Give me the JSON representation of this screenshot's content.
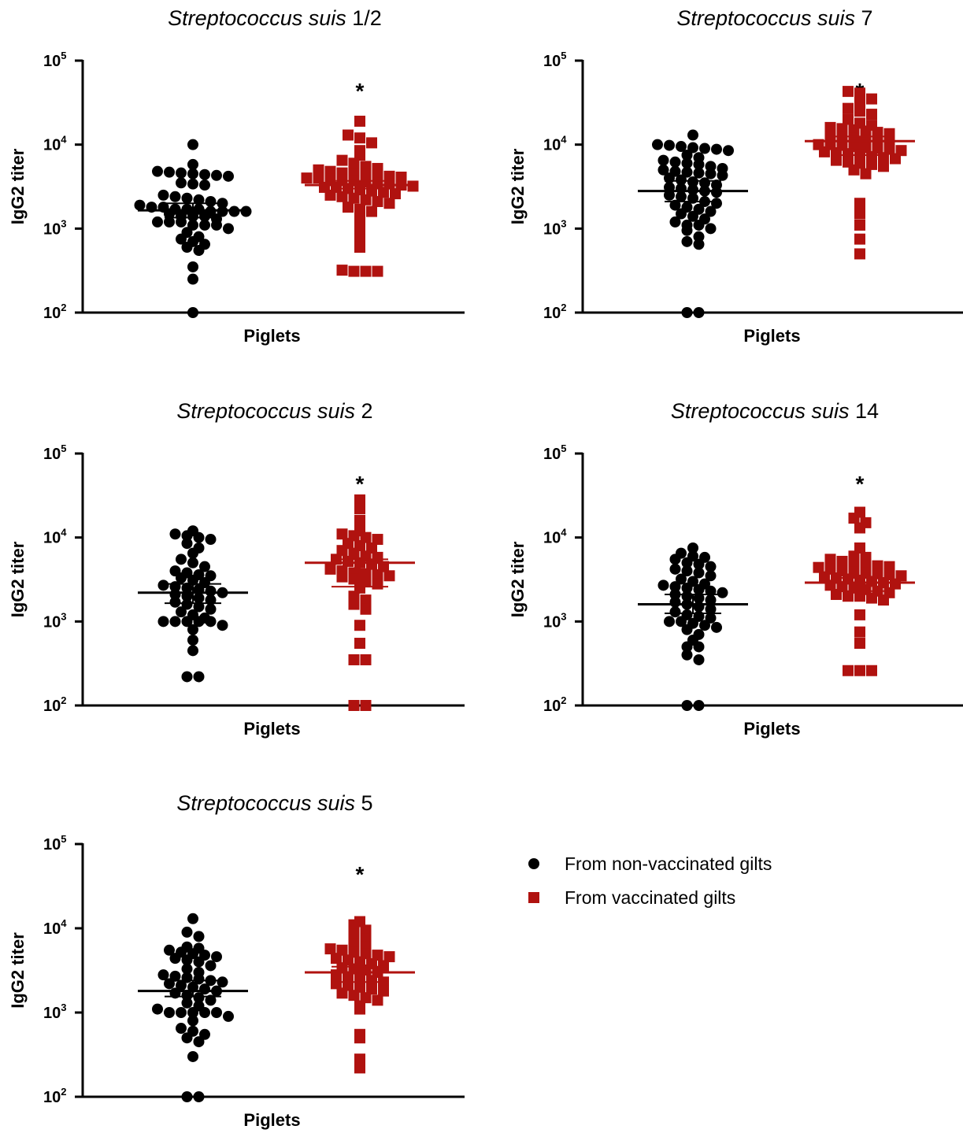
{
  "colors": {
    "non_vaccinated": "#000000",
    "vaccinated": "#b0120f",
    "axis": "#000000"
  },
  "legend": [
    {
      "label": "From non-vaccinated gilts",
      "marker": "circle",
      "color": "#000000"
    },
    {
      "label": "From vaccinated gilts",
      "marker": "square",
      "color": "#b0120f"
    }
  ],
  "chart_data": [
    {
      "type": "scatter",
      "title_italic": "Streptococcus suis",
      "title_serotype": "1/2",
      "xlabel": "Piglets",
      "ylabel": "IgG2 titer",
      "yscale": "log",
      "ylim": [
        100,
        100000
      ],
      "yticks": [
        {
          "base": "10",
          "exp": "2"
        },
        {
          "base": "10",
          "exp": "3"
        },
        {
          "base": "10",
          "exp": "4"
        },
        {
          "base": "10",
          "exp": "5"
        }
      ],
      "annotation": "*",
      "series": [
        {
          "group": "non_vaccinated",
          "marker": "circle",
          "mean": 1650,
          "lower": 1350,
          "upper": 2000,
          "values": [
            10000,
            5800,
            4800,
            4700,
            4600,
            4500,
            4400,
            4300,
            4200,
            3500,
            3400,
            3300,
            2500,
            2400,
            2300,
            2200,
            2100,
            2000,
            1900,
            1800,
            1800,
            1700,
            1700,
            1700,
            1600,
            1600,
            1600,
            1600,
            1500,
            1400,
            1400,
            1400,
            1300,
            1200,
            1200,
            1200,
            1100,
            1100,
            1100,
            1000,
            900,
            800,
            750,
            700,
            650,
            600,
            550,
            350,
            250,
            100
          ]
        },
        {
          "group": "vaccinated",
          "marker": "square",
          "mean": 3300,
          "lower": 3000,
          "upper": 3700,
          "values": [
            19000,
            13000,
            12000,
            10500,
            8500,
            7500,
            6500,
            6000,
            5500,
            5200,
            5000,
            4800,
            4600,
            4500,
            4400,
            4300,
            4200,
            4100,
            4000,
            4000,
            3900,
            3800,
            3700,
            3600,
            3500,
            3400,
            3300,
            3200,
            3100,
            3100,
            3000,
            2900,
            2800,
            2700,
            2600,
            2500,
            2400,
            2300,
            2200,
            2100,
            2000,
            1800,
            1700,
            1600,
            1300,
            1000,
            800,
            600,
            320,
            310,
            310,
            310
          ]
        }
      ]
    },
    {
      "type": "scatter",
      "title_italic": "Streptococcus suis",
      "title_serotype": "7",
      "xlabel": "Piglets",
      "ylabel": "IgG2 titer",
      "yscale": "log",
      "ylim": [
        100,
        100000
      ],
      "yticks": [
        {
          "base": "10",
          "exp": "2"
        },
        {
          "base": "10",
          "exp": "3"
        },
        {
          "base": "10",
          "exp": "4"
        },
        {
          "base": "10",
          "exp": "5"
        }
      ],
      "annotation": "*",
      "series": [
        {
          "group": "non_vaccinated",
          "marker": "circle",
          "mean": 2800,
          "lower": 2100,
          "upper": 3700,
          "values": [
            13000,
            10000,
            9800,
            9500,
            9200,
            9000,
            8800,
            8500,
            7500,
            7000,
            6500,
            6200,
            6000,
            5800,
            5500,
            5200,
            5000,
            4800,
            4700,
            4600,
            4500,
            4300,
            4000,
            3800,
            3600,
            3500,
            3300,
            3100,
            3000,
            2900,
            2800,
            2700,
            2500,
            2400,
            2300,
            2100,
            2000,
            1900,
            1800,
            1700,
            1600,
            1500,
            1400,
            1300,
            1200,
            1100,
            1100,
            1000,
            950,
            800,
            700,
            650,
            100,
            100
          ]
        },
        {
          "group": "vaccinated",
          "marker": "square",
          "mean": 11000,
          "lower": 7500,
          "upper": 12500,
          "values": [
            43000,
            41000,
            35000,
            33000,
            27000,
            25000,
            23000,
            20000,
            18000,
            17000,
            16000,
            15500,
            15000,
            14500,
            14000,
            13500,
            13000,
            12500,
            12000,
            11500,
            11000,
            10500,
            10000,
            10000,
            9800,
            9500,
            9200,
            9000,
            8800,
            8500,
            8200,
            8000,
            7800,
            7500,
            7200,
            7000,
            6800,
            6500,
            6200,
            6000,
            5800,
            5500,
            5000,
            4500,
            2000,
            1800,
            1500,
            1100,
            750,
            500
          ]
        }
      ]
    },
    {
      "type": "scatter",
      "title_italic": "Streptococcus suis",
      "title_serotype": "2",
      "xlabel": "Piglets",
      "ylabel": "IgG2 titer",
      "yscale": "log",
      "ylim": [
        100,
        100000
      ],
      "yticks": [
        {
          "base": "10",
          "exp": "2"
        },
        {
          "base": "10",
          "exp": "3"
        },
        {
          "base": "10",
          "exp": "4"
        },
        {
          "base": "10",
          "exp": "5"
        }
      ],
      "annotation": "*",
      "series": [
        {
          "group": "non_vaccinated",
          "marker": "circle",
          "mean": 2200,
          "lower": 1650,
          "upper": 2800,
          "values": [
            12000,
            11000,
            10500,
            10000,
            9500,
            8500,
            7500,
            6500,
            5500,
            5000,
            4500,
            4000,
            3800,
            3600,
            3500,
            3300,
            3100,
            2900,
            2700,
            2600,
            2500,
            2400,
            2300,
            2200,
            2100,
            2000,
            1900,
            1800,
            1700,
            1600,
            1500,
            1400,
            1300,
            1200,
            1100,
            1000,
            1000,
            1000,
            1000,
            1000,
            900,
            800,
            600,
            450,
            220,
            220
          ]
        },
        {
          "group": "vaccinated",
          "marker": "square",
          "mean": 5000,
          "lower": 2600,
          "upper": 5500,
          "values": [
            28000,
            22000,
            16000,
            12000,
            11000,
            10500,
            10000,
            9500,
            8500,
            8000,
            7500,
            7000,
            6500,
            6000,
            5800,
            5500,
            5200,
            5000,
            4800,
            4500,
            4200,
            4000,
            3800,
            3700,
            3600,
            3500,
            3400,
            3200,
            3000,
            2800,
            2500,
            2000,
            1800,
            1600,
            1400,
            900,
            550,
            350,
            350,
            100,
            100
          ]
        }
      ]
    },
    {
      "type": "scatter",
      "title_italic": "Streptococcus suis",
      "title_serotype": "14",
      "xlabel": "Piglets",
      "ylabel": "IgG2 titer",
      "yscale": "log",
      "ylim": [
        100,
        100000
      ],
      "yticks": [
        {
          "base": "10",
          "exp": "2"
        },
        {
          "base": "10",
          "exp": "3"
        },
        {
          "base": "10",
          "exp": "4"
        },
        {
          "base": "10",
          "exp": "5"
        }
      ],
      "annotation": "*",
      "series": [
        {
          "group": "non_vaccinated",
          "marker": "circle",
          "mean": 1600,
          "lower": 1250,
          "upper": 2100,
          "values": [
            7500,
            6500,
            6000,
            5800,
            5500,
            5000,
            4800,
            4500,
            4200,
            4000,
            3800,
            3500,
            3200,
            3000,
            2800,
            2700,
            2600,
            2500,
            2400,
            2300,
            2200,
            2100,
            2000,
            1900,
            1800,
            1700,
            1600,
            1500,
            1400,
            1300,
            1200,
            1150,
            1100,
            1000,
            1000,
            950,
            900,
            850,
            800,
            700,
            600,
            500,
            500,
            400,
            350,
            100,
            100
          ]
        },
        {
          "group": "vaccinated",
          "marker": "square",
          "mean": 2900,
          "lower": 2300,
          "upper": 3300,
          "values": [
            20000,
            17000,
            15000,
            13000,
            7500,
            6000,
            5800,
            5500,
            5200,
            5000,
            4800,
            4600,
            4500,
            4400,
            4200,
            4000,
            3900,
            3800,
            3700,
            3600,
            3500,
            3400,
            3300,
            3200,
            3100,
            3000,
            2900,
            2800,
            2700,
            2600,
            2500,
            2400,
            2300,
            2200,
            2100,
            2000,
            2000,
            1900,
            1800,
            1200,
            750,
            550,
            260,
            260,
            260
          ]
        }
      ]
    },
    {
      "type": "scatter",
      "title_italic": "Streptococcus suis",
      "title_serotype": "5",
      "xlabel": "Piglets",
      "ylabel": "IgG2 titer",
      "yscale": "log",
      "ylim": [
        100,
        100000
      ],
      "yticks": [
        {
          "base": "10",
          "exp": "2"
        },
        {
          "base": "10",
          "exp": "3"
        },
        {
          "base": "10",
          "exp": "4"
        },
        {
          "base": "10",
          "exp": "5"
        }
      ],
      "annotation": "*",
      "series": [
        {
          "group": "non_vaccinated",
          "marker": "circle",
          "mean": 1800,
          "lower": 1550,
          "upper": 2400,
          "values": [
            13000,
            9000,
            8000,
            6000,
            5800,
            5500,
            5200,
            5000,
            4800,
            4600,
            4400,
            4200,
            4000,
            3600,
            3300,
            3000,
            2800,
            2700,
            2600,
            2500,
            2400,
            2300,
            2200,
            2100,
            2000,
            1900,
            1800,
            1700,
            1600,
            1500,
            1400,
            1300,
            1200,
            1100,
            1000,
            1000,
            1000,
            1000,
            1000,
            900,
            800,
            650,
            600,
            550,
            500,
            450,
            300,
            100,
            100
          ]
        },
        {
          "group": "vaccinated",
          "marker": "square",
          "mean": 3000,
          "lower": 2300,
          "upper": 3500,
          "values": [
            12000,
            11000,
            9500,
            8500,
            7500,
            6500,
            6000,
            5700,
            5500,
            5200,
            5000,
            4800,
            4600,
            4400,
            4200,
            4000,
            3800,
            3600,
            3400,
            3300,
            3200,
            3000,
            2800,
            2600,
            2500,
            2400,
            2300,
            2200,
            2100,
            2000,
            1900,
            1800,
            1700,
            1600,
            1500,
            1400,
            1200,
            1100,
            550,
            500,
            280,
            220
          ]
        }
      ]
    }
  ]
}
